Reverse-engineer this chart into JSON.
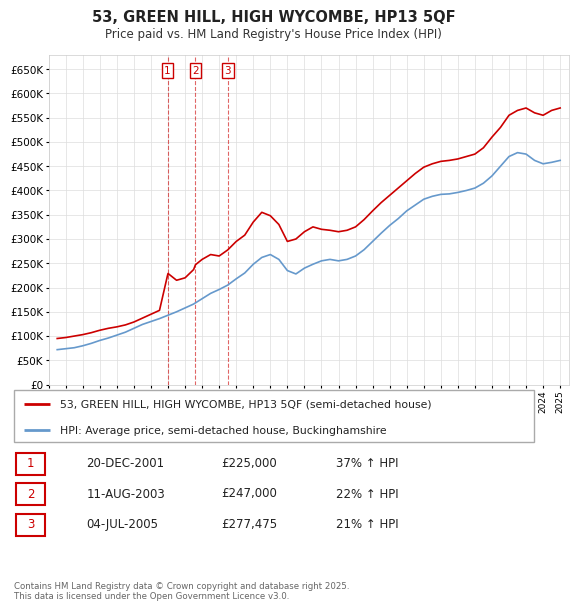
{
  "title": "53, GREEN HILL, HIGH WYCOMBE, HP13 5QF",
  "subtitle": "Price paid vs. HM Land Registry's House Price Index (HPI)",
  "legend_label_red": "53, GREEN HILL, HIGH WYCOMBE, HP13 5QF (semi-detached house)",
  "legend_label_blue": "HPI: Average price, semi-detached house, Buckinghamshire",
  "footer": "Contains HM Land Registry data © Crown copyright and database right 2025.\nThis data is licensed under the Open Government Licence v3.0.",
  "transactions": [
    {
      "num": 1,
      "date": "20-DEC-2001",
      "price": "£225,000",
      "hpi": "37% ↑ HPI",
      "year": 2001.97
    },
    {
      "num": 2,
      "date": "11-AUG-2003",
      "price": "£247,000",
      "hpi": "22% ↑ HPI",
      "year": 2003.61
    },
    {
      "num": 3,
      "date": "04-JUL-2005",
      "price": "£277,475",
      "hpi": "21% ↑ HPI",
      "year": 2005.5
    }
  ],
  "red_color": "#cc0000",
  "blue_color": "#6699cc",
  "vline_color": "#cc0000",
  "ylim": [
    0,
    680000
  ],
  "yticks": [
    0,
    50000,
    100000,
    150000,
    200000,
    250000,
    300000,
    350000,
    400000,
    450000,
    500000,
    550000,
    600000,
    650000
  ],
  "ytick_labels": [
    "£0",
    "£50K",
    "£100K",
    "£150K",
    "£200K",
    "£250K",
    "£300K",
    "£350K",
    "£400K",
    "£450K",
    "£500K",
    "£550K",
    "£600K",
    "£650K"
  ],
  "red_data": {
    "years": [
      1995.5,
      1996.0,
      1996.5,
      1997.0,
      1997.5,
      1998.0,
      1998.5,
      1999.0,
      1999.5,
      2000.0,
      2000.5,
      2001.0,
      2001.5,
      2001.97,
      2002.0,
      2002.5,
      2003.0,
      2003.5,
      2003.61,
      2004.0,
      2004.5,
      2005.0,
      2005.5,
      2006.0,
      2006.5,
      2007.0,
      2007.5,
      2008.0,
      2008.5,
      2009.0,
      2009.5,
      2010.0,
      2010.5,
      2011.0,
      2011.5,
      2012.0,
      2012.5,
      2013.0,
      2013.5,
      2014.0,
      2014.5,
      2015.0,
      2015.5,
      2016.0,
      2016.5,
      2017.0,
      2017.5,
      2018.0,
      2018.5,
      2019.0,
      2019.5,
      2020.0,
      2020.5,
      2021.0,
      2021.5,
      2022.0,
      2022.5,
      2023.0,
      2023.5,
      2024.0,
      2024.5,
      2025.0
    ],
    "values": [
      95000,
      97000,
      100000,
      103000,
      107000,
      112000,
      116000,
      119000,
      123000,
      129000,
      137000,
      145000,
      153000,
      225000,
      229000,
      215000,
      220000,
      237000,
      247000,
      258000,
      268000,
      265000,
      277475,
      295000,
      308000,
      335000,
      355000,
      348000,
      330000,
      295000,
      300000,
      315000,
      325000,
      320000,
      318000,
      315000,
      318000,
      325000,
      340000,
      358000,
      375000,
      390000,
      405000,
      420000,
      435000,
      448000,
      455000,
      460000,
      462000,
      465000,
      470000,
      475000,
      488000,
      510000,
      530000,
      555000,
      565000,
      570000,
      560000,
      555000,
      565000,
      570000
    ]
  },
  "blue_data": {
    "years": [
      1995.5,
      1996.0,
      1996.5,
      1997.0,
      1997.5,
      1998.0,
      1998.5,
      1999.0,
      1999.5,
      2000.0,
      2000.5,
      2001.0,
      2001.5,
      2002.0,
      2002.5,
      2003.0,
      2003.5,
      2004.0,
      2004.5,
      2005.0,
      2005.5,
      2006.0,
      2006.5,
      2007.0,
      2007.5,
      2008.0,
      2008.5,
      2009.0,
      2009.5,
      2010.0,
      2010.5,
      2011.0,
      2011.5,
      2012.0,
      2012.5,
      2013.0,
      2013.5,
      2014.0,
      2014.5,
      2015.0,
      2015.5,
      2016.0,
      2016.5,
      2017.0,
      2017.5,
      2018.0,
      2018.5,
      2019.0,
      2019.5,
      2020.0,
      2020.5,
      2021.0,
      2021.5,
      2022.0,
      2022.5,
      2023.0,
      2023.5,
      2024.0,
      2024.5,
      2025.0
    ],
    "values": [
      72000,
      74000,
      76000,
      80000,
      85000,
      91000,
      96000,
      102000,
      108000,
      116000,
      124000,
      130000,
      136000,
      143000,
      150000,
      158000,
      166000,
      177000,
      188000,
      196000,
      205000,
      218000,
      230000,
      248000,
      262000,
      268000,
      258000,
      235000,
      228000,
      240000,
      248000,
      255000,
      258000,
      255000,
      258000,
      265000,
      278000,
      295000,
      312000,
      328000,
      342000,
      358000,
      370000,
      382000,
      388000,
      392000,
      393000,
      396000,
      400000,
      405000,
      415000,
      430000,
      450000,
      470000,
      478000,
      475000,
      462000,
      455000,
      458000,
      462000
    ]
  }
}
